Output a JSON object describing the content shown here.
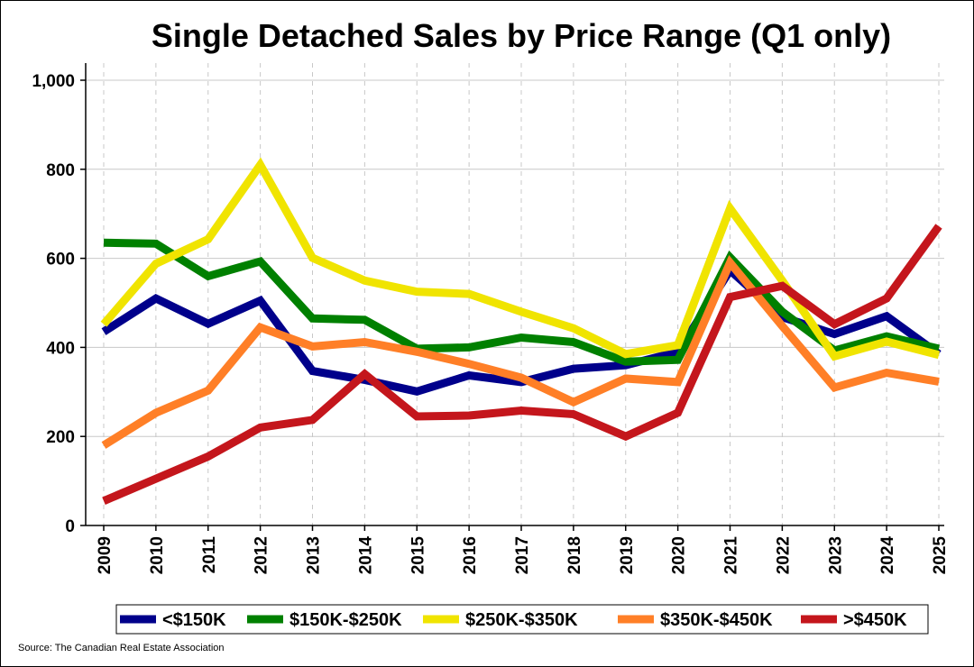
{
  "chart_data": {
    "type": "line",
    "title": "Single Detached Sales by Price Range (Q1 only)",
    "xlabel": "",
    "ylabel": "",
    "categories": [
      "2009",
      "2010",
      "2011",
      "2012",
      "2013",
      "2014",
      "2015",
      "2016",
      "2017",
      "2018",
      "2019",
      "2020",
      "2021",
      "2022",
      "2023",
      "2024",
      "2025"
    ],
    "ylim": [
      0,
      1000
    ],
    "yticks": [
      0,
      200,
      400,
      600,
      800,
      1000
    ],
    "ytick_labels": [
      "0",
      "200",
      "400",
      "600",
      "800",
      "1,000"
    ],
    "grid": true,
    "legend_position": "bottom",
    "source": "Source: The Canadian Real Estate Association",
    "series": [
      {
        "name": "<$150K",
        "color": "#00008b",
        "values": [
          435,
          510,
          453,
          505,
          347,
          327,
          301,
          337,
          322,
          352,
          360,
          390,
          573,
          468,
          430,
          470,
          385
        ]
      },
      {
        "name": "$150K-$250K",
        "color": "#008000",
        "values": [
          635,
          633,
          560,
          593,
          465,
          462,
          397,
          400,
          422,
          412,
          368,
          372,
          602,
          480,
          393,
          425,
          397
        ]
      },
      {
        "name": "$250K-$350K",
        "color": "#f0e400",
        "values": [
          452,
          588,
          643,
          810,
          601,
          550,
          525,
          520,
          480,
          443,
          385,
          405,
          712,
          550,
          380,
          413,
          383
        ]
      },
      {
        "name": "$350K-$450K",
        "color": "#ff7f27",
        "values": [
          180,
          253,
          303,
          445,
          402,
          412,
          390,
          363,
          332,
          277,
          330,
          322,
          590,
          448,
          310,
          343,
          323
        ]
      },
      {
        "name": ">$450K",
        "color": "#c4161c",
        "values": [
          55,
          105,
          155,
          220,
          237,
          340,
          245,
          247,
          258,
          250,
          200,
          253,
          513,
          538,
          452,
          510,
          672
        ]
      }
    ]
  }
}
